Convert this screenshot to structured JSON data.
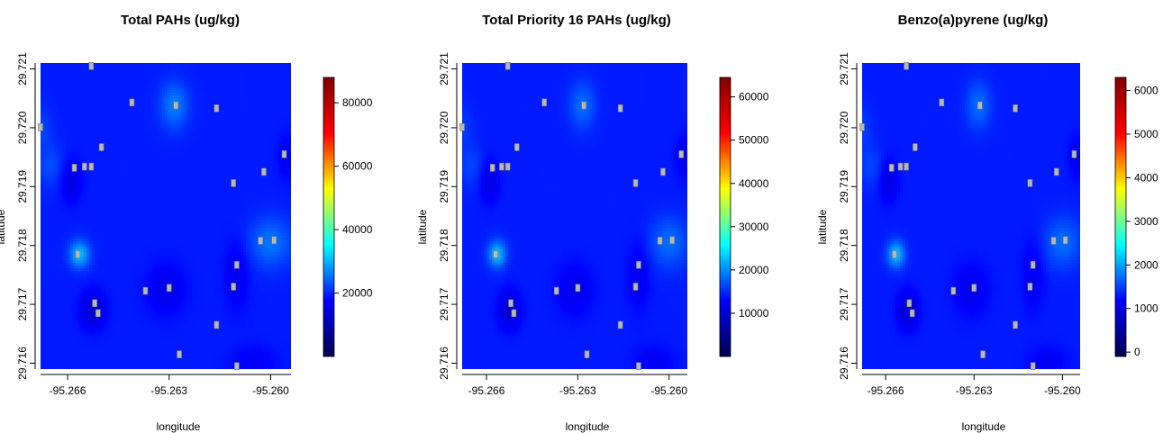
{
  "chart_data": [
    {
      "type": "heatmap",
      "title": "Total PAHs (ug/kg)",
      "xlabel": "longitude",
      "ylabel": "latitude",
      "x_ticks": [
        "-95.266",
        "-95.263",
        "-95.260"
      ],
      "x_tick_values": [
        -95.266,
        -95.263,
        -95.26
      ],
      "y_ticks": [
        "29.716",
        "29.717",
        "29.718",
        "29.719",
        "29.720",
        "29.721"
      ],
      "y_tick_values": [
        29.716,
        29.717,
        29.718,
        29.719,
        29.72,
        29.721
      ],
      "xlim": [
        -95.2668,
        -95.2594
      ],
      "ylim": [
        29.7159,
        29.7211
      ],
      "colorbar": {
        "range": [
          0,
          88000
        ],
        "ticks": [
          "20000",
          "40000",
          "60000",
          "80000"
        ],
        "tick_values": [
          20000,
          40000,
          60000,
          80000
        ]
      },
      "colors": [
        "#00004d",
        "#0000ff",
        "#00ffff",
        "#ffff00",
        "#ff0000",
        "#800000"
      ]
    },
    {
      "type": "heatmap",
      "title": "Total Priority 16 PAHs  (ug/kg)",
      "xlabel": "longitude",
      "ylabel": "latitude",
      "x_ticks": [
        "-95.266",
        "-95.263",
        "-95.260"
      ],
      "x_tick_values": [
        -95.266,
        -95.263,
        -95.26
      ],
      "y_ticks": [
        "29.716",
        "29.717",
        "29.718",
        "29.719",
        "29.720",
        "29.721"
      ],
      "y_tick_values": [
        29.716,
        29.717,
        29.718,
        29.719,
        29.72,
        29.721
      ],
      "xlim": [
        -95.2668,
        -95.2594
      ],
      "ylim": [
        29.7159,
        29.7211
      ],
      "colorbar": {
        "range": [
          0,
          64500
        ],
        "ticks": [
          "10000",
          "20000",
          "30000",
          "40000",
          "50000",
          "60000"
        ],
        "tick_values": [
          10000,
          20000,
          30000,
          40000,
          50000,
          60000
        ]
      },
      "colors": [
        "#00004d",
        "#0000ff",
        "#00ffff",
        "#ffff00",
        "#ff0000",
        "#800000"
      ]
    },
    {
      "type": "heatmap",
      "title": "Benzo(a)pyrene (ug/kg)",
      "xlabel": "longitude",
      "ylabel": "latitude",
      "x_ticks": [
        "-95.266",
        "-95.263",
        "-95.260"
      ],
      "x_tick_values": [
        -95.266,
        -95.263,
        -95.26
      ],
      "y_ticks": [
        "29.716",
        "29.717",
        "29.718",
        "29.719",
        "29.720",
        "29.721"
      ],
      "y_tick_values": [
        29.716,
        29.717,
        29.718,
        29.719,
        29.72,
        29.721
      ],
      "xlim": [
        -95.2668,
        -95.2594
      ],
      "ylim": [
        29.7159,
        29.7211
      ],
      "colorbar": {
        "range": [
          -100,
          6300
        ],
        "ticks": [
          "0",
          "1000",
          "2000",
          "3000",
          "4000",
          "5000",
          "6000"
        ],
        "tick_values": [
          0,
          1000,
          2000,
          3000,
          4000,
          5000,
          6000
        ]
      },
      "colors": [
        "#00004d",
        "#0000ff",
        "#00ffff",
        "#ffff00",
        "#ff0000",
        "#800000"
      ]
    }
  ],
  "sample_points": [
    [
      -95.2653,
      29.72105
    ],
    [
      -95.2641,
      29.72043
    ],
    [
      -95.2628,
      29.72038
    ],
    [
      -95.2616,
      29.72033
    ],
    [
      -95.2668,
      29.72001
    ],
    [
      -95.265,
      29.71967
    ],
    [
      -95.2658,
      29.71932
    ],
    [
      -95.2655,
      29.71934
    ],
    [
      -95.2653,
      29.71934
    ],
    [
      -95.2596,
      29.71955
    ],
    [
      -95.2602,
      29.71925
    ],
    [
      -95.2611,
      29.71906
    ],
    [
      -95.2657,
      29.71785
    ],
    [
      -95.2603,
      29.71808
    ],
    [
      -95.2599,
      29.71809
    ],
    [
      -95.261,
      29.71767
    ],
    [
      -95.2611,
      29.7173
    ],
    [
      -95.263,
      29.71728
    ],
    [
      -95.2637,
      29.71723
    ],
    [
      -95.2652,
      29.71702
    ],
    [
      -95.2651,
      29.71685
    ],
    [
      -95.2616,
      29.71665
    ],
    [
      -95.2627,
      29.71615
    ],
    [
      -95.261,
      29.71595
    ]
  ],
  "hotspots": [
    {
      "point": [
        -95.26565,
        29.71785
      ],
      "level": [
        1.0,
        1.0,
        1.0
      ],
      "sx": 0.00021,
      "sy": 0.00016
    },
    {
      "point": [
        -95.26285,
        29.72038
      ],
      "level": [
        0.6,
        0.5,
        0.5
      ],
      "sx": 0.0003,
      "sy": 0.00028
    },
    {
      "point": [
        -95.26,
        29.71805
      ],
      "level": [
        0.55,
        0.5,
        0.5
      ],
      "sx": 0.00045,
      "sy": 0.0003
    },
    {
      "point": [
        -95.2665,
        29.71935
      ],
      "level": [
        0.3,
        0.25,
        0.25
      ],
      "sx": 0.0003,
      "sy": 0.00025
    },
    {
      "point": [
        -95.2668,
        29.72
      ],
      "level": [
        0.25,
        0.2,
        0.2
      ],
      "sx": 0.00025,
      "sy": 0.00025
    }
  ],
  "dark_spots": [
    {
      "point": [
        -95.26525,
        29.7169
      ],
      "level": -0.35,
      "sx": 0.00025,
      "sy": 0.00022
    },
    {
      "point": [
        -95.2659,
        29.7191
      ],
      "level": -0.25,
      "sx": 0.00022,
      "sy": 0.00025
    },
    {
      "point": [
        -95.2631,
        29.71725
      ],
      "level": -0.2,
      "sx": 0.0004,
      "sy": 0.0003
    },
    {
      "point": [
        -95.261,
        29.7175
      ],
      "level": -0.18,
      "sx": 0.00025,
      "sy": 0.0004
    },
    {
      "point": [
        -95.2605,
        29.716
      ],
      "level": -0.15,
      "sx": 0.00045,
      "sy": 0.0002
    },
    {
      "point": [
        -95.2595,
        29.7195
      ],
      "level": -0.18,
      "sx": 0.0002,
      "sy": 0.00025
    }
  ]
}
